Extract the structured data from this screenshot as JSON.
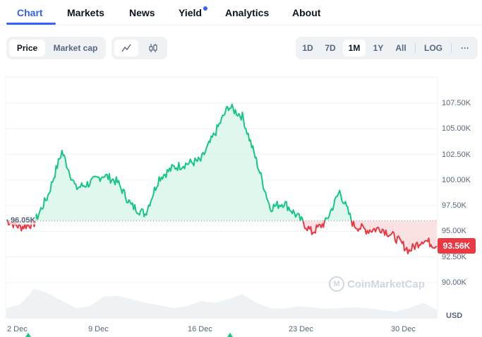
{
  "tabs": [
    {
      "label": "Chart",
      "active": true
    },
    {
      "label": "Markets",
      "active": false
    },
    {
      "label": "News",
      "active": false
    },
    {
      "label": "Yield",
      "active": false,
      "badge_dot": true
    },
    {
      "label": "Analytics",
      "active": false
    },
    {
      "label": "About",
      "active": false
    }
  ],
  "toolbar": {
    "metric": {
      "options": [
        "Price",
        "Market cap"
      ],
      "selected": "Price"
    },
    "chart_type": {
      "options": [
        "line-chart-icon",
        "candlestick-icon"
      ],
      "selected": "line-chart-icon"
    },
    "range": {
      "options": [
        "1D",
        "7D",
        "1M",
        "1Y",
        "All"
      ],
      "selected": "1M"
    },
    "log_label": "LOG",
    "more_label": "···"
  },
  "chart": {
    "baseline_label": "96.05K",
    "current_price_label": "93.56K",
    "currency_label": "USD",
    "watermark": "CoinMarketCap",
    "colors": {
      "up": "#16c784",
      "down": "#ea3943",
      "up_fill": "#d7f5e8",
      "down_fill": "#fbd9db",
      "volume": "#eff2f5"
    }
  },
  "chart_data": {
    "type": "line",
    "title": "",
    "xlabel": "",
    "ylabel": "USD",
    "x_ticks": [
      "2 Dec",
      "9 Dec",
      "16 Dec",
      "23 Dec",
      "30 Dec"
    ],
    "y_ticks": [
      "90.00K",
      "92.50K",
      "95.00K",
      "97.50K",
      "100.00K",
      "102.50K",
      "105.00K",
      "107.50K"
    ],
    "ylim": [
      88500,
      109000
    ],
    "baseline": 96050,
    "last_value": 93560,
    "grid": true,
    "series": [
      {
        "name": "Price",
        "x": [
          "1 Dec",
          "2 Dec",
          "3 Dec",
          "4 Dec",
          "5 Dec",
          "6 Dec",
          "7 Dec",
          "8 Dec",
          "9 Dec",
          "10 Dec",
          "11 Dec",
          "12 Dec",
          "13 Dec",
          "14 Dec",
          "15 Dec",
          "16 Dec",
          "17 Dec",
          "18 Dec",
          "19 Dec",
          "20 Dec",
          "21 Dec",
          "22 Dec",
          "23 Dec",
          "24 Dec",
          "25 Dec",
          "26 Dec",
          "27 Dec",
          "28 Dec",
          "29 Dec",
          "30 Dec",
          "31 Dec",
          "1 Jan"
        ],
        "values": [
          96100,
          95400,
          95800,
          98500,
          102800,
          99200,
          99700,
          100500,
          99800,
          97500,
          96700,
          100200,
          101200,
          101600,
          101900,
          104500,
          107200,
          106200,
          101900,
          97300,
          97800,
          96400,
          94900,
          95900,
          98900,
          95600,
          95100,
          95300,
          94400,
          93100,
          94200,
          93560
        ]
      },
      {
        "name": "Volume",
        "values": [
          30,
          40,
          85,
          72,
          50,
          30,
          35,
          62,
          65,
          55,
          45,
          38,
          30,
          35,
          50,
          45,
          55,
          70,
          45,
          30,
          28,
          35,
          32,
          28,
          30,
          32,
          30,
          25,
          20,
          30,
          45,
          25
        ]
      }
    ]
  }
}
